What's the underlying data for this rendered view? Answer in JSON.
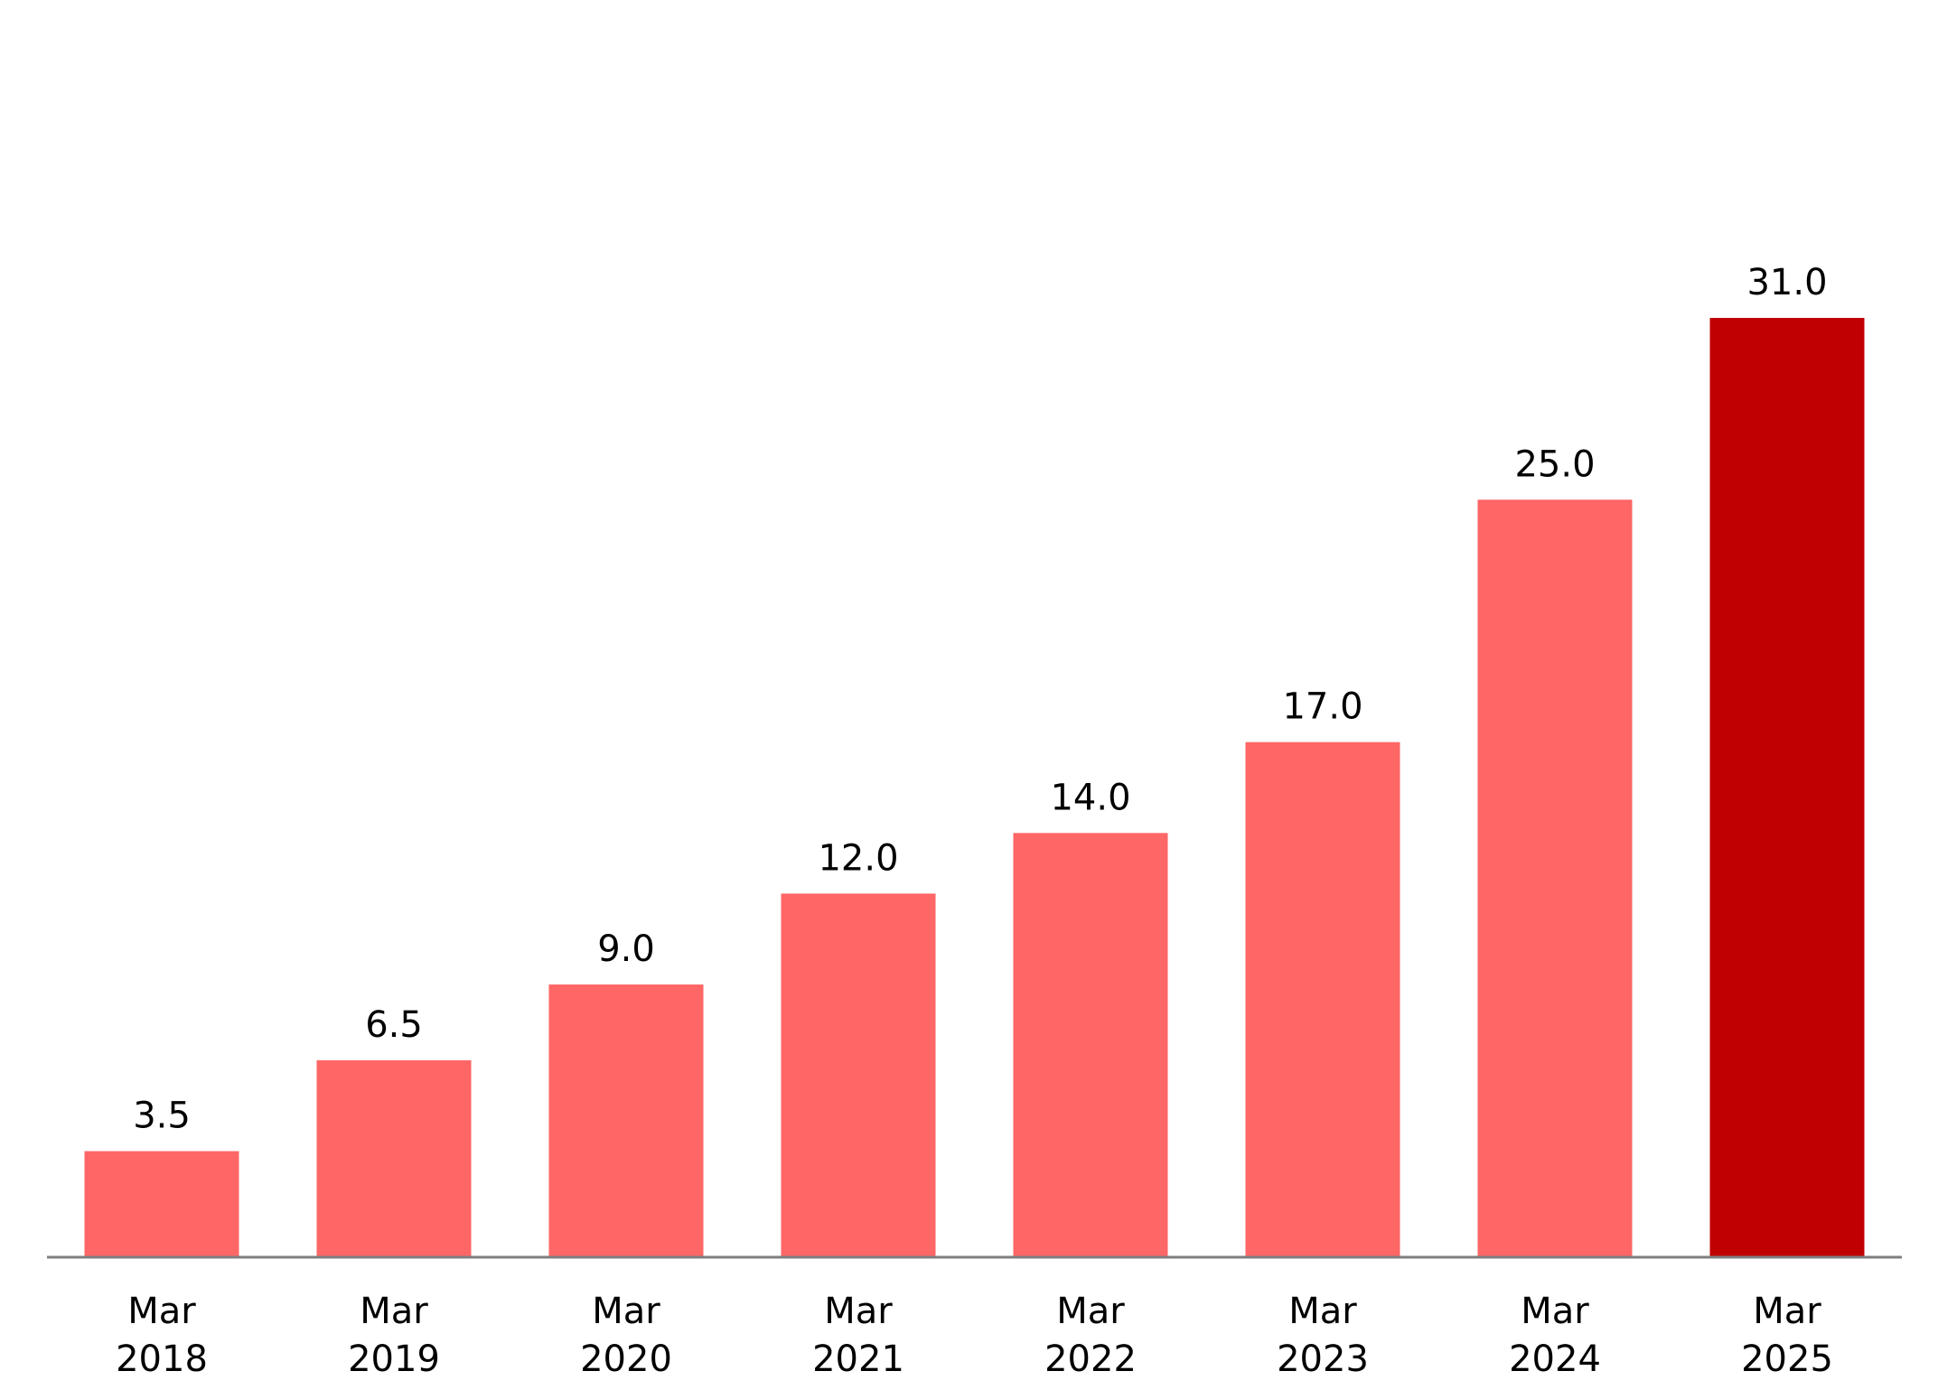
{
  "chart_data": {
    "type": "bar",
    "title": "",
    "xlabel": "",
    "ylabel": "",
    "categories": [
      [
        "Mar",
        "2018"
      ],
      [
        "Mar",
        "2019"
      ],
      [
        "Mar",
        "2020"
      ],
      [
        "Mar",
        "2021"
      ],
      [
        "Mar",
        "2022"
      ],
      [
        "Mar",
        "2023"
      ],
      [
        "Mar",
        "2024"
      ],
      [
        "Mar",
        "2025"
      ]
    ],
    "values": [
      3.5,
      6.5,
      9.0,
      12.0,
      14.0,
      17.0,
      25.0,
      31.0
    ],
    "value_labels": [
      "3.5",
      "6.5",
      "9.0",
      "12.0",
      "14.0",
      "17.0",
      "25.0",
      "31.0"
    ],
    "ylim": [
      0,
      31
    ],
    "grid": false,
    "legend": "none",
    "colors": {
      "bar": "#ff6666",
      "highlight_bar": "#c00000",
      "axis": "#7f7f7f",
      "text": "#000000"
    },
    "highlight_index": 7
  }
}
